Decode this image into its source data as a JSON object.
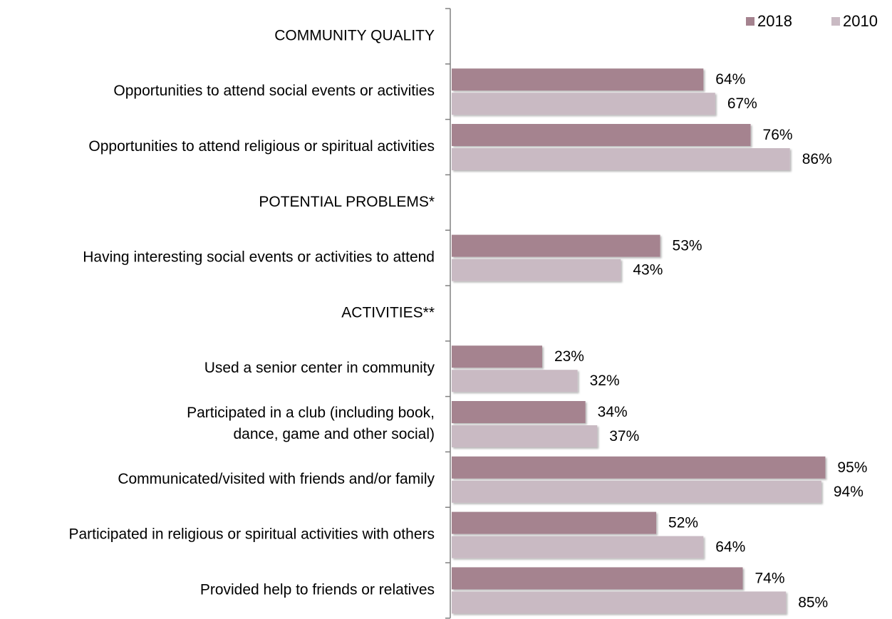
{
  "chart_data": {
    "type": "bar",
    "orientation": "horizontal",
    "grid": false,
    "legend_position": "top-right",
    "xlim": [
      0,
      100
    ],
    "value_format": "percent",
    "title": "",
    "xlabel": "",
    "ylabel": "",
    "categories": [
      "COMMUNITY QUALITY",
      "Opportunities to attend social events or activities",
      "Opportunities to attend religious or spiritual activities",
      "POTENTIAL PROBLEMS*",
      "Having interesting social events or activities to attend",
      "ACTIVITIES**",
      "Used a senior center in community",
      "Participated in a club (including book, dance, game and other social)",
      "Communicated/visited with friends and/or family",
      "Participated in religious or spiritual activities with others",
      "Provided help to friends or relatives"
    ],
    "category_lines": [
      [
        "COMMUNITY QUALITY"
      ],
      [
        "Opportunities to attend social events or activities"
      ],
      [
        "Opportunities to attend religious or spiritual activities"
      ],
      [
        "POTENTIAL PROBLEMS*"
      ],
      [
        "Having interesting social events or activities to attend"
      ],
      [
        "ACTIVITIES**"
      ],
      [
        "Used a senior center in community"
      ],
      [
        "Participated in a club (including book,",
        "dance, game and other social)"
      ],
      [
        "Communicated/visited with friends and/or family"
      ],
      [
        "Participated in religious or spiritual activities with others"
      ],
      [
        "Provided help to friends or relatives"
      ]
    ],
    "series": [
      {
        "name": "2018",
        "color": "#a5838f",
        "values": [
          null,
          64,
          76,
          null,
          53,
          null,
          23,
          34,
          95,
          52,
          74
        ]
      },
      {
        "name": "2010",
        "color": "#c9bac3",
        "values": [
          null,
          67,
          86,
          null,
          43,
          null,
          32,
          37,
          94,
          64,
          85
        ]
      }
    ]
  }
}
